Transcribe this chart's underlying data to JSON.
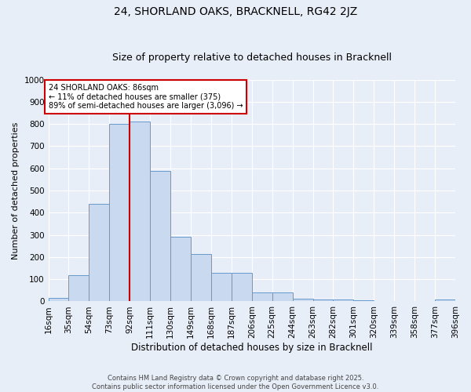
{
  "title": "24, SHORLAND OAKS, BRACKNELL, RG42 2JZ",
  "subtitle": "Size of property relative to detached houses in Bracknell",
  "xlabel": "Distribution of detached houses by size in Bracknell",
  "ylabel": "Number of detached properties",
  "footnote1": "Contains HM Land Registry data © Crown copyright and database right 2025.",
  "footnote2": "Contains public sector information licensed under the Open Government Licence v3.0.",
  "bin_labels": [
    "16sqm",
    "35sqm",
    "54sqm",
    "73sqm",
    "92sqm",
    "111sqm",
    "130sqm",
    "149sqm",
    "168sqm",
    "187sqm",
    "206sqm",
    "225sqm",
    "244sqm",
    "263sqm",
    "282sqm",
    "301sqm",
    "320sqm",
    "339sqm",
    "358sqm",
    "377sqm",
    "396sqm"
  ],
  "bar_values": [
    15,
    120,
    440,
    800,
    810,
    590,
    290,
    215,
    130,
    130,
    42,
    40,
    12,
    10,
    8,
    5,
    0,
    0,
    0,
    8
  ],
  "bin_edges": [
    16,
    35,
    54,
    73,
    92,
    111,
    130,
    149,
    168,
    187,
    206,
    225,
    244,
    263,
    282,
    301,
    320,
    339,
    358,
    377,
    396
  ],
  "bar_color": "#c8d9f0",
  "bar_edge_color": "#6699cc",
  "property_line_x": 92,
  "annotation_text": "24 SHORLAND OAKS: 86sqm\n← 11% of detached houses are smaller (375)\n89% of semi-detached houses are larger (3,096) →",
  "annotation_box_color": "#ffffff",
  "annotation_box_edge_color": "#cc0000",
  "red_line_color": "#cc0000",
  "ylim": [
    0,
    1000
  ],
  "yticks": [
    0,
    100,
    200,
    300,
    400,
    500,
    600,
    700,
    800,
    900,
    1000
  ],
  "background_color": "#e8eef8",
  "axes_background": "#e8eef8",
  "grid_color": "#ffffff",
  "title_fontsize": 10,
  "subtitle_fontsize": 9,
  "xlabel_fontsize": 8.5,
  "ylabel_fontsize": 8,
  "tick_fontsize": 7.5,
  "footnote_fontsize": 6,
  "footnote_color": "#444444"
}
